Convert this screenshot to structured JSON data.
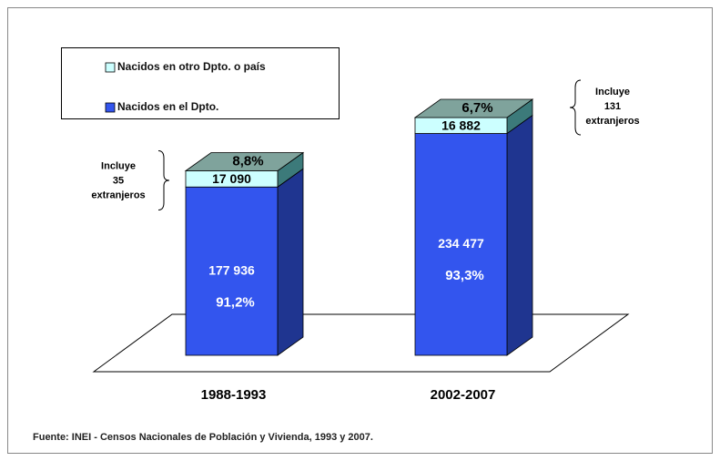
{
  "chart_data": {
    "type": "bar3d_stacked",
    "categories": [
      "1988-1993",
      "2002-2007"
    ],
    "series": [
      {
        "name": "Nacidos en el Dpto.",
        "color": "#3355ee",
        "values": [
          177936,
          234477
        ],
        "value_labels": [
          "177 936",
          "234 477"
        ],
        "percentages": [
          91.2,
          93.3
        ],
        "percentage_labels": [
          "91,2%",
          "93,3%"
        ]
      },
      {
        "name": "Nacidos en otro Dpto. o país",
        "color": "#ccffff",
        "values": [
          17090,
          16882
        ],
        "value_labels": [
          "17 090",
          "16 882"
        ],
        "percentages": [
          8.8,
          6.7
        ],
        "percentage_labels": [
          "8,8%",
          "6,7%"
        ]
      }
    ],
    "annotations": [
      {
        "category": 0,
        "lines": [
          "Incluye",
          "35",
          "extranjeros"
        ]
      },
      {
        "category": 1,
        "lines": [
          "Incluye",
          "131",
          "extranjeros"
        ]
      }
    ],
    "note": "Fuente: INEI - Censos Nacionales de Población y Vivienda, 1993 y 2007."
  }
}
